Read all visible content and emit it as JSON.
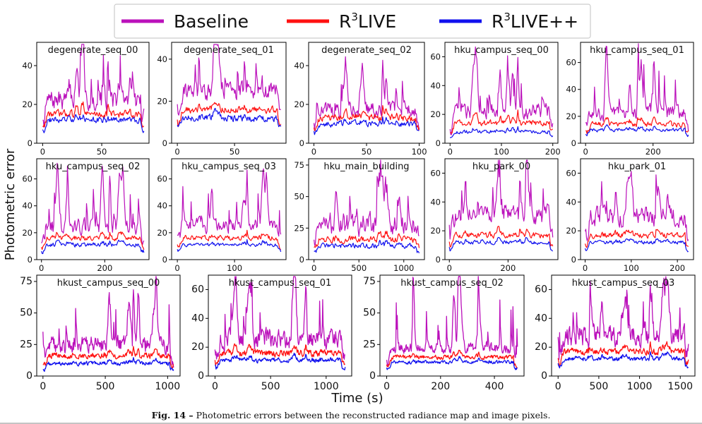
{
  "legend": {
    "items": [
      {
        "key": "baseline",
        "label": "Baseline",
        "color": "#bb11bb"
      },
      {
        "key": "r3live",
        "label_base": "R",
        "label_sup": "3",
        "label_rest": "LIVE",
        "color": "#ff1111"
      },
      {
        "key": "r3livepp",
        "label_base": "R",
        "label_sup": "3",
        "label_rest": "LIVE++",
        "color": "#1111ee"
      }
    ]
  },
  "axes": {
    "ylabel": "Photometric error",
    "xlabel": "Time (s)"
  },
  "caption": {
    "label": "Fig. 14 –",
    "text": "Photometric errors between the reconstructed radiance map and image pixels."
  },
  "colors": {
    "baseline": "#bb11bb",
    "r3live": "#ff1111",
    "r3livepp": "#1111ee"
  },
  "chart_data": [
    {
      "type": "line",
      "title": "degenerate_seq_00",
      "xlim": [
        -5,
        90
      ],
      "ylim": [
        0,
        52
      ],
      "xticks": [
        "0",
        "50"
      ],
      "xtick_vals": [
        0,
        50
      ],
      "yticks": [
        "0",
        "20",
        "40"
      ],
      "ytick_vals": [
        0,
        20,
        40
      ],
      "series": [
        {
          "name": "Baseline",
          "base": 22,
          "noise": 8,
          "peak": 46
        },
        {
          "name": "R3LIVE",
          "base": 15,
          "noise": 3,
          "peak": 22
        },
        {
          "name": "R3LIVE++",
          "base": 12,
          "noise": 2.5,
          "peak": 15
        }
      ]
    },
    {
      "type": "line",
      "title": "degenerate_seq_01",
      "xlim": [
        -5,
        95
      ],
      "ylim": [
        0,
        48
      ],
      "xticks": [
        "0",
        "50"
      ],
      "xtick_vals": [
        0,
        50
      ],
      "yticks": [
        "0",
        "20",
        "40"
      ],
      "ytick_vals": [
        0,
        20,
        40
      ],
      "series": [
        {
          "name": "Baseline",
          "base": 25,
          "noise": 7,
          "peak": 43
        },
        {
          "name": "R3LIVE",
          "base": 16,
          "noise": 2.5,
          "peak": 20
        },
        {
          "name": "R3LIVE++",
          "base": 12,
          "noise": 2.5,
          "peak": 15
        }
      ]
    },
    {
      "type": "line",
      "title": "degenerate_seq_02",
      "xlim": [
        -5,
        105
      ],
      "ylim": [
        0,
        52
      ],
      "xticks": [
        "0",
        "50",
        "100"
      ],
      "xtick_vals": [
        0,
        50,
        100
      ],
      "yticks": [
        "0",
        "20",
        "40"
      ],
      "ytick_vals": [
        0,
        20,
        40
      ],
      "series": [
        {
          "name": "Baseline",
          "base": 17,
          "noise": 6,
          "peak": 44
        },
        {
          "name": "R3LIVE",
          "base": 13,
          "noise": 3,
          "peak": 20
        },
        {
          "name": "R3LIVE++",
          "base": 10,
          "noise": 2.5,
          "peak": 14
        }
      ]
    },
    {
      "type": "line",
      "title": "hku_campus_seq_00",
      "xlim": [
        -10,
        210
      ],
      "ylim": [
        0,
        70
      ],
      "xticks": [
        "0",
        "100",
        "200"
      ],
      "xtick_vals": [
        0,
        100,
        200
      ],
      "yticks": [
        "0",
        "20",
        "40",
        "60"
      ],
      "ytick_vals": [
        0,
        20,
        40,
        60
      ],
      "series": [
        {
          "name": "Baseline",
          "base": 22,
          "noise": 8,
          "peak": 62
        },
        {
          "name": "R3LIVE",
          "base": 14,
          "noise": 3,
          "peak": 24
        },
        {
          "name": "R3LIVE++",
          "base": 8,
          "noise": 2,
          "peak": 12
        }
      ]
    },
    {
      "type": "line",
      "title": "hku_campus_seq_01",
      "xlim": [
        -15,
        320
      ],
      "ylim": [
        0,
        75
      ],
      "xticks": [
        "0",
        "200"
      ],
      "xtick_vals": [
        0,
        200
      ],
      "yticks": [
        "0",
        "20",
        "40",
        "60"
      ],
      "ytick_vals": [
        0,
        20,
        40,
        60
      ],
      "series": [
        {
          "name": "Baseline",
          "base": 22,
          "noise": 8,
          "peak": 68
        },
        {
          "name": "R3LIVE",
          "base": 14,
          "noise": 3,
          "peak": 22
        },
        {
          "name": "R3LIVE++",
          "base": 10,
          "noise": 2,
          "peak": 14
        }
      ]
    },
    {
      "type": "line",
      "title": "hku_campus_seq_02",
      "xlim": [
        -15,
        340
      ],
      "ylim": [
        0,
        75
      ],
      "xticks": [
        "0",
        "200"
      ],
      "xtick_vals": [
        0,
        200
      ],
      "yticks": [
        "0",
        "20",
        "40",
        "60"
      ],
      "ytick_vals": [
        0,
        20,
        40,
        60
      ],
      "series": [
        {
          "name": "Baseline",
          "base": 24,
          "noise": 9,
          "peak": 67
        },
        {
          "name": "R3LIVE",
          "base": 16,
          "noise": 3,
          "peak": 22
        },
        {
          "name": "R3LIVE++",
          "base": 11,
          "noise": 2.5,
          "peak": 15
        }
      ]
    },
    {
      "type": "line",
      "title": "hku_campus_seq_03",
      "xlim": [
        -10,
        190
      ],
      "ylim": [
        0,
        75
      ],
      "xticks": [
        "0",
        "100"
      ],
      "xtick_vals": [
        0,
        100
      ],
      "yticks": [
        "0",
        "20",
        "40",
        "60"
      ],
      "ytick_vals": [
        0,
        20,
        40,
        60
      ],
      "series": [
        {
          "name": "Baseline",
          "base": 25,
          "noise": 8,
          "peak": 67
        },
        {
          "name": "R3LIVE",
          "base": 16,
          "noise": 3,
          "peak": 22
        },
        {
          "name": "R3LIVE++",
          "base": 11,
          "noise": 2,
          "peak": 15
        }
      ]
    },
    {
      "type": "line",
      "title": "hku_main_building",
      "xlim": [
        -60,
        1230
      ],
      "ylim": [
        0,
        80
      ],
      "xticks": [
        "0",
        "500",
        "1000"
      ],
      "xtick_vals": [
        0,
        500,
        1000
      ],
      "yticks": [
        "0",
        "25",
        "50",
        "75"
      ],
      "ytick_vals": [
        0,
        25,
        50,
        75
      ],
      "series": [
        {
          "name": "Baseline",
          "base": 28,
          "noise": 14,
          "peak": 70
        },
        {
          "name": "R3LIVE",
          "base": 16,
          "noise": 4,
          "peak": 24
        },
        {
          "name": "R3LIVE++",
          "base": 11,
          "noise": 3,
          "peak": 16
        }
      ]
    },
    {
      "type": "line",
      "title": "hku_park_00",
      "xlim": [
        -15,
        370
      ],
      "ylim": [
        0,
        70
      ],
      "xticks": [
        "0",
        "200"
      ],
      "xtick_vals": [
        0,
        200
      ],
      "yticks": [
        "0",
        "20",
        "40",
        "60"
      ],
      "ytick_vals": [
        0,
        20,
        40,
        60
      ],
      "series": [
        {
          "name": "Baseline",
          "base": 30,
          "noise": 10,
          "peak": 62
        },
        {
          "name": "R3LIVE",
          "base": 17,
          "noise": 3,
          "peak": 24
        },
        {
          "name": "R3LIVE++",
          "base": 12,
          "noise": 2,
          "peak": 16
        }
      ]
    },
    {
      "type": "line",
      "title": "hku_park_01",
      "xlim": [
        -10,
        235
      ],
      "ylim": [
        0,
        70
      ],
      "xticks": [
        "0",
        "100",
        "200"
      ],
      "xtick_vals": [
        0,
        100,
        200
      ],
      "yticks": [
        "0",
        "20",
        "40",
        "60"
      ],
      "ytick_vals": [
        0,
        20,
        40,
        60
      ],
      "series": [
        {
          "name": "Baseline",
          "base": 30,
          "noise": 10,
          "peak": 62
        },
        {
          "name": "R3LIVE",
          "base": 17,
          "noise": 3,
          "peak": 22
        },
        {
          "name": "R3LIVE++",
          "base": 12,
          "noise": 2,
          "peak": 15
        }
      ]
    },
    {
      "type": "line",
      "title": "hkust_campus_seq_00",
      "xlim": [
        -50,
        1100
      ],
      "ylim": [
        0,
        80
      ],
      "xticks": [
        "0",
        "500",
        "1000"
      ],
      "xtick_vals": [
        0,
        500,
        1000
      ],
      "yticks": [
        "0",
        "25",
        "50",
        "75"
      ],
      "ytick_vals": [
        0,
        25,
        50,
        75
      ],
      "series": [
        {
          "name": "Baseline",
          "base": 25,
          "noise": 10,
          "peak": 70
        },
        {
          "name": "R3LIVE",
          "base": 16,
          "noise": 3.5,
          "peak": 24
        },
        {
          "name": "R3LIVE++",
          "base": 10,
          "noise": 2.5,
          "peak": 15
        }
      ]
    },
    {
      "type": "line",
      "title": "hkust_campus_seq_01",
      "xlim": [
        -60,
        1230
      ],
      "ylim": [
        0,
        70
      ],
      "xticks": [
        "0",
        "500",
        "1000"
      ],
      "xtick_vals": [
        0,
        500,
        1000
      ],
      "yticks": [
        "0",
        "20",
        "40",
        "60"
      ],
      "ytick_vals": [
        0,
        20,
        40,
        60
      ],
      "series": [
        {
          "name": "Baseline",
          "base": 25,
          "noise": 10,
          "peak": 66
        },
        {
          "name": "R3LIVE",
          "base": 16,
          "noise": 3.5,
          "peak": 23
        },
        {
          "name": "R3LIVE++",
          "base": 11,
          "noise": 2.5,
          "peak": 16
        }
      ]
    },
    {
      "type": "line",
      "title": "hkust_campus_seq_02",
      "xlim": [
        -25,
        510
      ],
      "ylim": [
        0,
        80
      ],
      "xticks": [
        "0",
        "200",
        "400"
      ],
      "xtick_vals": [
        0,
        200,
        400
      ],
      "yticks": [
        "0",
        "25",
        "50",
        "75"
      ],
      "ytick_vals": [
        0,
        25,
        50,
        75
      ],
      "series": [
        {
          "name": "Baseline",
          "base": 22,
          "noise": 6,
          "peak": 75
        },
        {
          "name": "R3LIVE",
          "base": 15,
          "noise": 2.5,
          "peak": 20
        },
        {
          "name": "R3LIVE++",
          "base": 11,
          "noise": 2,
          "peak": 15
        }
      ]
    },
    {
      "type": "line",
      "title": "hkust_campus_seq_03",
      "xlim": [
        -80,
        1680
      ],
      "ylim": [
        0,
        70
      ],
      "xticks": [
        "0",
        "500",
        "1000",
        "1500"
      ],
      "xtick_vals": [
        0,
        500,
        1000,
        1500
      ],
      "yticks": [
        "0",
        "20",
        "40",
        "60"
      ],
      "ytick_vals": [
        0,
        20,
        40,
        60
      ],
      "series": [
        {
          "name": "Baseline",
          "base": 28,
          "noise": 11,
          "peak": 64
        },
        {
          "name": "R3LIVE",
          "base": 17,
          "noise": 3.5,
          "peak": 24
        },
        {
          "name": "R3LIVE++",
          "base": 12,
          "noise": 2.5,
          "peak": 17
        }
      ]
    }
  ]
}
